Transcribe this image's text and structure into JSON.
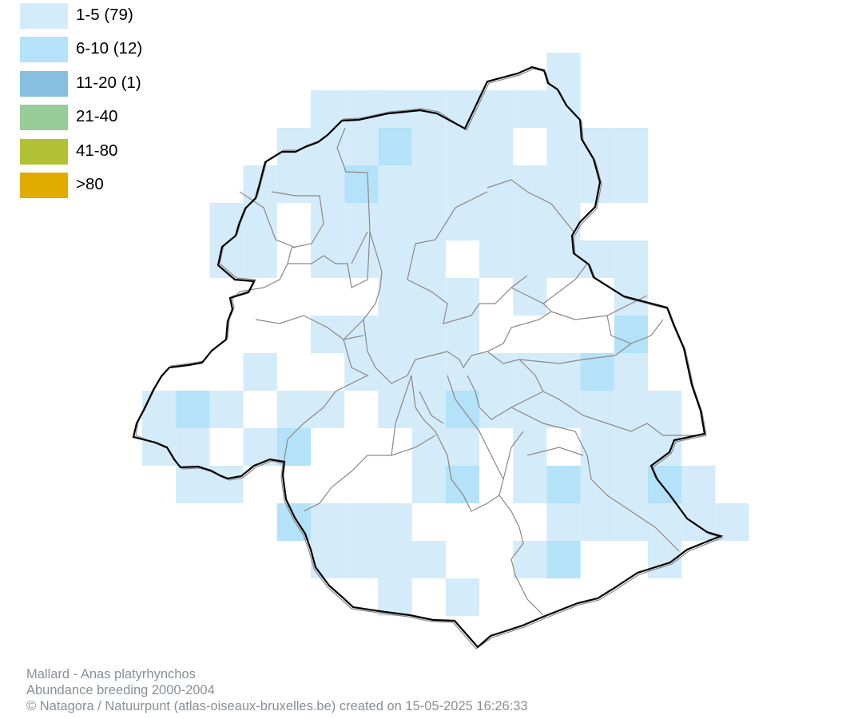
{
  "legend": [
    {
      "label": "1-5 (79)",
      "color": "#d4ebfa"
    },
    {
      "label": "6-10 (12)",
      "color": "#b3e2f9"
    },
    {
      "label": "11-20 (1)",
      "color": "#86bfe0"
    },
    {
      "label": "21-40",
      "color": "#98cc98"
    },
    {
      "label": "41-80",
      "color": "#b0c233"
    },
    {
      "label": ">80",
      "color": "#e1ab00"
    }
  ],
  "footer": {
    "species": "Mallard - Anas platyrhynchos",
    "dataset": "Abundance breeding 2000-2004",
    "credit": "© Natagora / Natuurpunt (atlas-oiseaux-bruxelles.be) created on 15-05-2025 16:26:33"
  }
}
